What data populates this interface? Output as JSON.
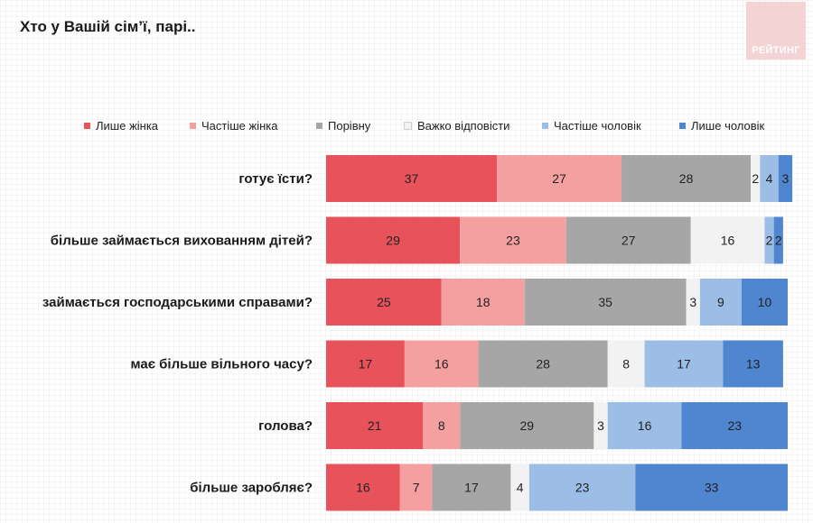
{
  "title": "Хто у Вашій сім’ї, парі..",
  "logo_text": "РЕЙТИНГ",
  "colors": {
    "logo_bg": "#f3d3d3"
  },
  "chart_data": {
    "type": "bar",
    "orientation": "horizontal",
    "stacked": true,
    "xlim": [
      0,
      100
    ],
    "grid": false,
    "legend": "top",
    "categories": [
      "готує їсти?",
      "більше займається вихованням дітей?",
      "займається господарськими справами?",
      "має більше вільного часу?",
      "голова?",
      "більше заробляє?"
    ],
    "series": [
      {
        "name": "Лише жінка",
        "color": "#e8525a",
        "label_color": "#222222",
        "values": [
          37,
          29,
          25,
          17,
          21,
          16
        ]
      },
      {
        "name": "Частіше  жінка",
        "color": "#f4a0a0",
        "label_color": "#222222",
        "values": [
          27,
          23,
          18,
          16,
          8,
          7
        ]
      },
      {
        "name": "Порівну",
        "color": "#a6a6a6",
        "label_color": "#222222",
        "values": [
          28,
          27,
          35,
          28,
          29,
          17
        ]
      },
      {
        "name": "Важко відповісти",
        "color": "#f2f2f2",
        "label_color": "#222222",
        "values": [
          2,
          16,
          3,
          8,
          3,
          4
        ]
      },
      {
        "name": "Частіше  чоловік",
        "color": "#9cbde6",
        "label_color": "#222222",
        "values": [
          4,
          2,
          9,
          17,
          16,
          23
        ]
      },
      {
        "name": "Лише чоловік",
        "color": "#4f86cf",
        "label_color": "#222222",
        "values": [
          3,
          2,
          10,
          13,
          23,
          33
        ]
      }
    ]
  }
}
